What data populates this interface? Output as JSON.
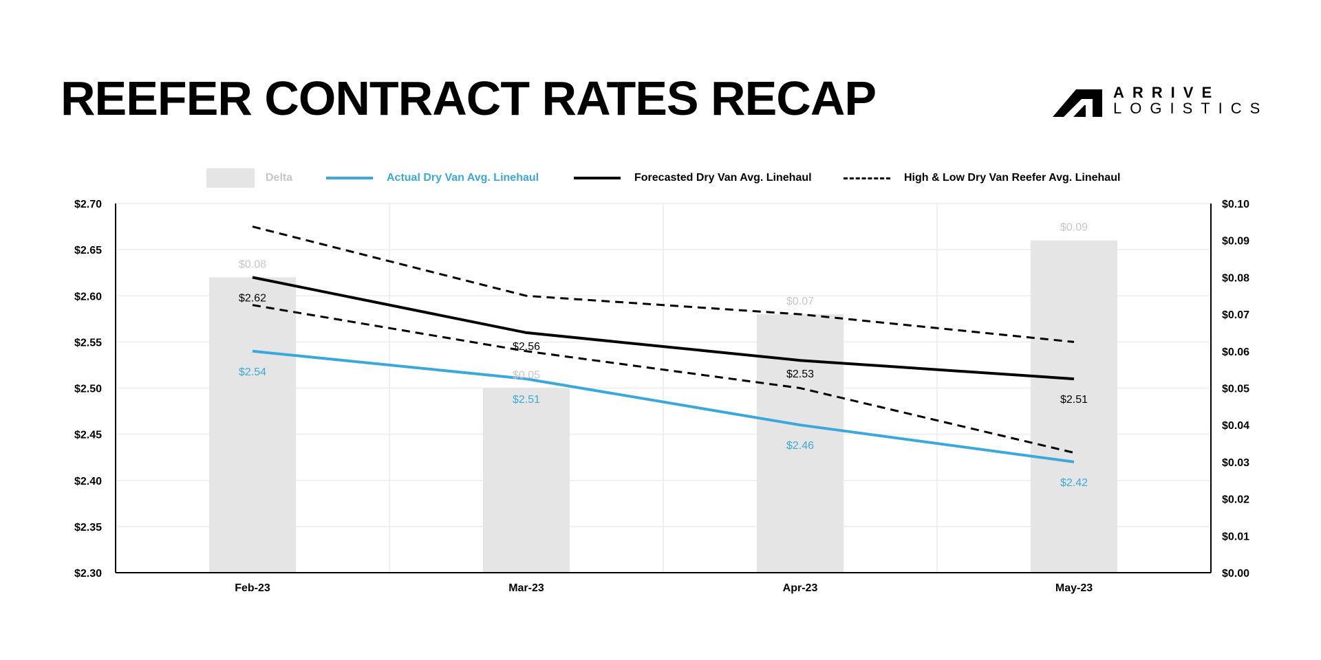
{
  "header": {
    "title": "REEFER CONTRACT RATES RECAP",
    "logo_line1": "ARRIVE",
    "logo_line2": "LOGISTICS"
  },
  "colors": {
    "delta": "#e6e5e6",
    "delta_label": "#c8c6c8",
    "actual": "#3aa8da",
    "forecast": "#000000",
    "grid": "#ececec"
  },
  "legend": [
    {
      "label": "Delta",
      "kind": "box"
    },
    {
      "label": "Actual Dry Van Avg. Linehaul",
      "kind": "line"
    },
    {
      "label": "Forecasted Dry Van Avg. Linehaul",
      "kind": "line"
    },
    {
      "label": "High & Low Dry Van Reefer Avg. Linehaul",
      "kind": "dashed"
    }
  ],
  "chart_data": {
    "type": "bar",
    "categories": [
      "Feb-23",
      "Mar-23",
      "Apr-23",
      "May-23"
    ],
    "y_left": {
      "min": 2.3,
      "max": 2.7,
      "ticks": [
        "$2.30",
        "$2.35",
        "$2.40",
        "$2.45",
        "$2.50",
        "$2.55",
        "$2.60",
        "$2.65",
        "$2.70"
      ]
    },
    "y_right": {
      "min": 0.0,
      "max": 0.1,
      "ticks": [
        "$0.00",
        "$0.01",
        "$0.02",
        "$0.03",
        "$0.04",
        "$0.05",
        "$0.06",
        "$0.07",
        "$0.08",
        "$0.09",
        "$0.10"
      ]
    },
    "grid": true,
    "legend_position": "top",
    "series": [
      {
        "name": "Delta",
        "type": "bar",
        "axis": "right",
        "values": [
          0.08,
          0.05,
          0.07,
          0.09
        ],
        "labels": [
          "$0.08",
          "$0.05",
          "$0.07",
          "$0.09"
        ]
      },
      {
        "name": "Actual Dry Van Avg. Linehaul",
        "type": "line",
        "axis": "left",
        "values": [
          2.54,
          2.51,
          2.46,
          2.42
        ],
        "labels": [
          "$2.54",
          "$2.51",
          "$2.46",
          "$2.42"
        ]
      },
      {
        "name": "Forecasted Dry Van Avg. Linehaul",
        "type": "line",
        "axis": "left",
        "values": [
          2.62,
          2.56,
          2.53,
          2.51
        ],
        "labels": [
          "$2.62",
          "$2.56",
          "$2.53",
          "$2.51"
        ]
      },
      {
        "name": "High & Low Dry Van Reefer Avg. Linehaul",
        "type": "dashed",
        "axis": "left",
        "values_high": [
          2.675,
          2.6,
          2.58,
          2.55
        ],
        "values_low": [
          2.59,
          2.54,
          2.5,
          2.43
        ]
      }
    ]
  }
}
